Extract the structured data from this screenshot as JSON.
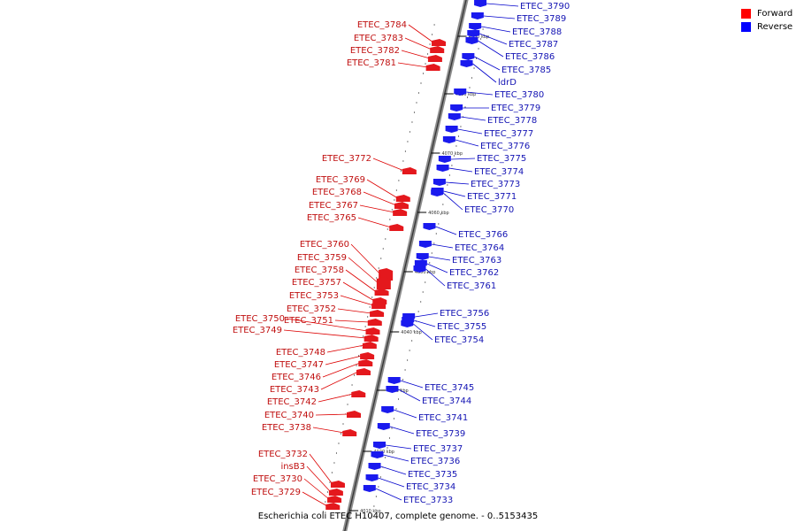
{
  "colors": {
    "forward": "#e4181d",
    "reverse": "#1a1aee",
    "axis": "#8c8c8c",
    "label_forward": "#c01010",
    "label_reverse": "#1414b4"
  },
  "legend": [
    {
      "label": "Forward",
      "color": "#ff0000"
    },
    {
      "label": "Reverse",
      "color": "#0000ff"
    }
  ],
  "caption": "Escherichia coli ETEC H10407, complete genome. - 0..5153435",
  "ticks": [
    "4090 kbp",
    "4080 kbp",
    "4070 kbp",
    "4060 kbp",
    "4050 kbp",
    "4040 kbp",
    "4030 kbp",
    "4020 kbp",
    "4010 kbp"
  ],
  "forward_genes": [
    "ETEC_3784",
    "ETEC_3783",
    "ETEC_3782",
    "ETEC_3781",
    "ETEC_3772",
    "ETEC_3769",
    "ETEC_3768",
    "ETEC_3767",
    "ETEC_3765",
    "ETEC_3760",
    "ETEC_3759",
    "ETEC_3758",
    "ETEC_3757",
    "ETEC_3753",
    "ETEC_3752",
    "ETEC_3751",
    "ETEC_3750",
    "ETEC_3749",
    "ETEC_3748",
    "ETEC_3747",
    "ETEC_3746",
    "ETEC_3743",
    "ETEC_3742",
    "ETEC_3740",
    "ETEC_3738",
    "ETEC_3732",
    "insB3",
    "ETEC_3730",
    "ETEC_3729"
  ],
  "reverse_genes": [
    "ETEC_3790",
    "ETEC_3789",
    "ETEC_3788",
    "ETEC_3787",
    "ETEC_3786",
    "ETEC_3785",
    "ldrD",
    "ETEC_3780",
    "ETEC_3779",
    "ETEC_3778",
    "ETEC_3777",
    "ETEC_3776",
    "ETEC_3775",
    "ETEC_3774",
    "ETEC_3773",
    "ETEC_3771",
    "ETEC_3770",
    "ETEC_3766",
    "ETEC_3764",
    "ETEC_3763",
    "ETEC_3762",
    "ETEC_3761",
    "ETEC_3756",
    "ETEC_3755",
    "ETEC_3754",
    "ETEC_3745",
    "ETEC_3744",
    "ETEC_3741",
    "ETEC_3739",
    "ETEC_3737",
    "ETEC_3736",
    "ETEC_3735",
    "ETEC_3734",
    "ETEC_3733"
  ]
}
